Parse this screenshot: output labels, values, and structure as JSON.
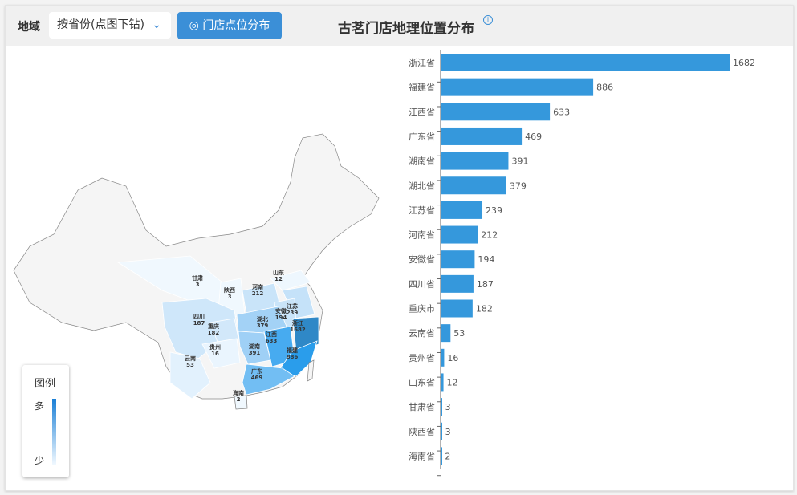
{
  "toolbar": {
    "region_label": "地域",
    "region_select": "按省份(点图下钻)",
    "store_button": "门店点位分布",
    "title": "古茗门店地理位置分布",
    "info_icon": "info-icon"
  },
  "legend": {
    "title": "图例",
    "high": "多",
    "low": "少",
    "color_high": "#1a7fd6",
    "color_low": "#f0f8ff"
  },
  "map_labels": [
    {
      "name": "甘肃",
      "value": "3"
    },
    {
      "name": "陕西",
      "value": "3"
    },
    {
      "name": "河南",
      "value": "212"
    },
    {
      "name": "山东",
      "value": "12"
    },
    {
      "name": "四川",
      "value": "187"
    },
    {
      "name": "重庆",
      "value": "182"
    },
    {
      "name": "湖北",
      "value": "379"
    },
    {
      "name": "安徽",
      "value": "194"
    },
    {
      "name": "江苏",
      "value": "239"
    },
    {
      "name": "浙江",
      "value": "1682"
    },
    {
      "name": "湖南",
      "value": "391"
    },
    {
      "name": "江西",
      "value": "633"
    },
    {
      "name": "贵州",
      "value": "16"
    },
    {
      "name": "云南",
      "value": "53"
    },
    {
      "name": "福建",
      "value": "886"
    },
    {
      "name": "广东",
      "value": "469"
    },
    {
      "name": "海南",
      "value": "2"
    }
  ],
  "chart_data": {
    "type": "bar",
    "orientation": "horizontal",
    "bar_color": "#3598dc",
    "categories": [
      "浙江省",
      "福建省",
      "江西省",
      "广东省",
      "湖南省",
      "湖北省",
      "江苏省",
      "河南省",
      "安徽省",
      "四川省",
      "重庆市",
      "云南省",
      "贵州省",
      "山东省",
      "甘肃省",
      "陕西省",
      "海南省"
    ],
    "values": [
      1682,
      886,
      633,
      469,
      391,
      379,
      239,
      212,
      194,
      187,
      182,
      53,
      16,
      12,
      3,
      3,
      2
    ]
  }
}
